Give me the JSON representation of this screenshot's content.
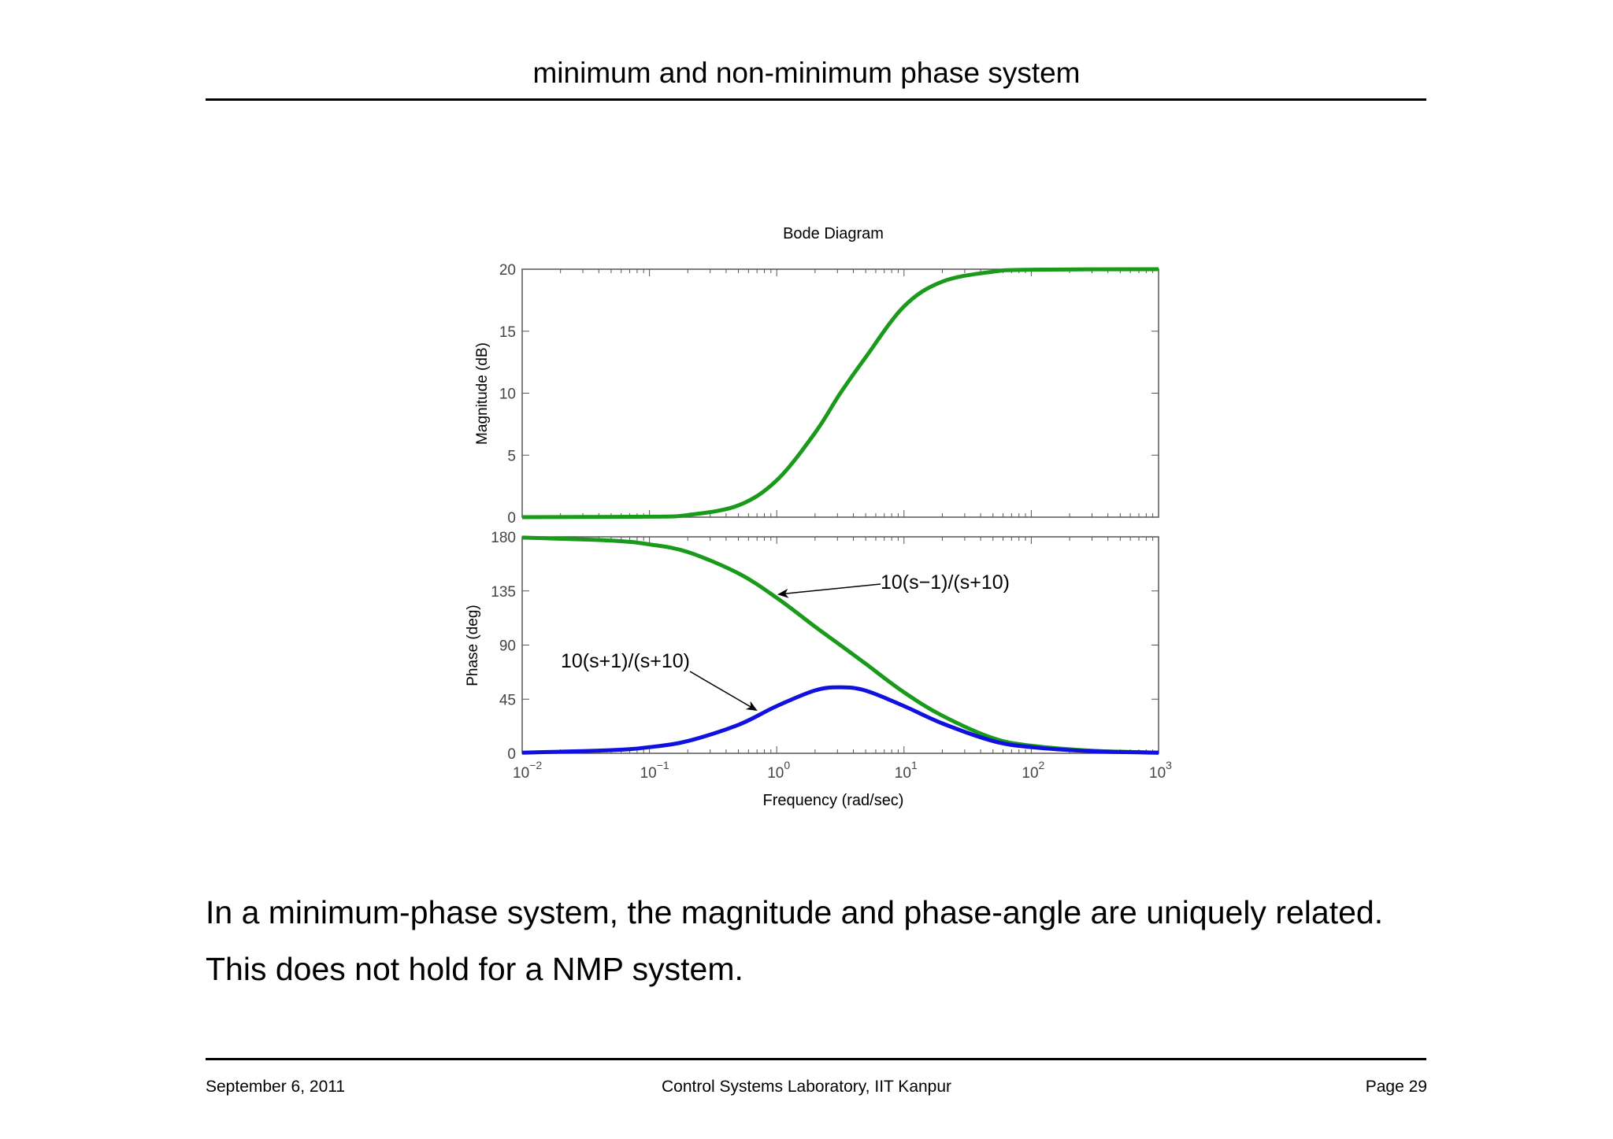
{
  "slide": {
    "title": "minimum and non-minimum phase system",
    "body_lines": [
      "In a minimum-phase system, the magnitude and phase-angle are uniquely related.",
      "This does not hold for a NMP system."
    ],
    "footer": {
      "date": "September 6, 2011",
      "lab": "Control Systems Laboratory, IIT Kanpur",
      "page": "Page 29"
    }
  },
  "chart_data": {
    "type": "line",
    "title": "Bode Diagram",
    "xlabel": "Frequency  (rad/sec)",
    "x_scale": "log",
    "xlim": [
      0.01,
      1000
    ],
    "x_tick_labels": [
      {
        "base": "10",
        "exp": "−2"
      },
      {
        "base": "10",
        "exp": "−1"
      },
      {
        "base": "10",
        "exp": "0"
      },
      {
        "base": "10",
        "exp": "1"
      },
      {
        "base": "10",
        "exp": "2"
      },
      {
        "base": "10",
        "exp": "3"
      }
    ],
    "grid": false,
    "magnitude": {
      "ylabel": "Magnitude (dB)",
      "ylim": [
        0,
        20
      ],
      "yticks": [
        "0",
        "5",
        "10",
        "15",
        "20"
      ],
      "series": [
        {
          "color": "#1a9a1a",
          "x": [
            0.01,
            0.1,
            0.2,
            0.5,
            1,
            2,
            3.16,
            5,
            10,
            20,
            50,
            100,
            1000
          ],
          "y": [
            0.0,
            0.04,
            0.17,
            0.95,
            2.97,
            6.8,
            10.0,
            12.9,
            17.0,
            19.0,
            19.8,
            19.96,
            20.0
          ]
        }
      ]
    },
    "phase": {
      "ylabel": "Phase (deg)",
      "ylim": [
        0,
        180
      ],
      "yticks": [
        "0",
        "45",
        "90",
        "135",
        "180"
      ],
      "series": [
        {
          "name": "10(s−1)/(s+10)",
          "color": "#1a9a1a",
          "x": [
            0.01,
            0.05,
            0.1,
            0.2,
            0.5,
            1,
            2,
            3.16,
            5,
            10,
            20,
            50,
            100,
            300,
            1000
          ],
          "y": [
            179.4,
            176.9,
            173.7,
            167.4,
            149.6,
            129.3,
            105.3,
            90.0,
            74.4,
            50.7,
            31.3,
            12.6,
            6.3,
            2.1,
            0.6
          ]
        },
        {
          "name": "10(s+1)/(s+10)",
          "color": "#1010e0",
          "x": [
            0.01,
            0.05,
            0.1,
            0.2,
            0.5,
            1,
            2,
            3.16,
            5,
            10,
            20,
            50,
            100,
            300,
            1000
          ],
          "y": [
            0.5,
            2.6,
            5.1,
            10.2,
            23.7,
            39.3,
            52.3,
            54.9,
            52.1,
            39.3,
            24.9,
            10.2,
            5.1,
            1.7,
            0.5
          ]
        }
      ]
    },
    "annotations": [
      {
        "text": "10(s−1)/(s+10)"
      },
      {
        "text": "10(s+1)/(s+10)"
      }
    ]
  }
}
